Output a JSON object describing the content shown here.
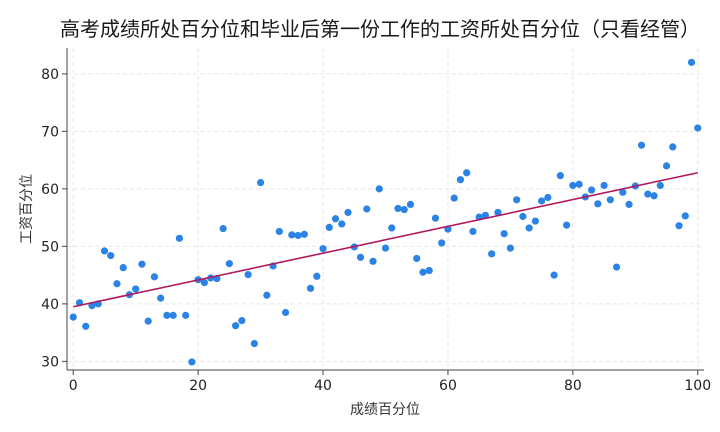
{
  "chart_data": {
    "type": "scatter",
    "title": "高考成绩所处百分位和毕业后第一份工作的工资所处百分位（只看经管）",
    "xlabel": "成绩百分位",
    "ylabel": "工资百分位",
    "xlim": [
      -1,
      101
    ],
    "ylim": [
      28.5,
      84.5
    ],
    "xticks": [
      0,
      20,
      40,
      60,
      80,
      100
    ],
    "yticks": [
      30,
      40,
      50,
      60,
      70,
      80
    ],
    "grid": true,
    "legend": "none",
    "colors": {
      "points": "#2b83e6",
      "fit_line": "#b0195e"
    },
    "fit_line": {
      "x": [
        0,
        100
      ],
      "y": [
        39.5,
        62.8
      ]
    },
    "series": [
      {
        "x": [
          0,
          1,
          2,
          3,
          4,
          5,
          6,
          7,
          8,
          9,
          10,
          11,
          12,
          13,
          14,
          15,
          16,
          17,
          18,
          19,
          20,
          21,
          22,
          23,
          24,
          25,
          26,
          27,
          28,
          29,
          30,
          31,
          32,
          33,
          34,
          35,
          36,
          37,
          38,
          39,
          40,
          41,
          42,
          43,
          44,
          45,
          46,
          47,
          48,
          49,
          50,
          51,
          52,
          53,
          54,
          55,
          56,
          57,
          58,
          59,
          60,
          61,
          62,
          63,
          64,
          65,
          66,
          67,
          68,
          69,
          70,
          71,
          72,
          73,
          74,
          75,
          76,
          77,
          78,
          79,
          80,
          81,
          82,
          83,
          84,
          85,
          86,
          87,
          88,
          89,
          90,
          91,
          92,
          93,
          94,
          95,
          96,
          97,
          98,
          99,
          100
        ],
        "y": [
          37.7,
          40.2,
          36.1,
          39.7,
          40.0,
          49.2,
          48.4,
          43.5,
          46.3,
          41.6,
          42.6,
          46.9,
          37.0,
          44.7,
          41.0,
          38.0,
          38.0,
          51.4,
          38.0,
          29.9,
          44.2,
          43.7,
          44.5,
          44.4,
          53.1,
          47.0,
          36.2,
          37.1,
          45.1,
          33.1,
          61.1,
          41.5,
          46.6,
          52.6,
          38.5,
          52.0,
          51.9,
          52.1,
          42.7,
          44.8,
          49.6,
          53.3,
          54.8,
          53.9,
          55.9,
          49.9,
          48.1,
          56.5,
          47.4,
          60.0,
          49.7,
          53.2,
          56.6,
          56.4,
          57.3,
          47.9,
          45.5,
          45.8,
          54.9,
          50.6,
          53.0,
          58.4,
          61.6,
          62.8,
          52.6,
          55.1,
          55.4,
          48.7,
          55.9,
          52.2,
          49.7,
          58.1,
          55.2,
          53.2,
          54.4,
          57.9,
          58.5,
          45.0,
          62.3,
          53.7,
          60.6,
          60.8,
          58.6,
          59.8,
          57.4,
          60.6,
          58.1,
          46.4,
          59.4,
          57.3,
          60.5,
          67.6,
          59.1,
          58.8,
          60.6,
          64.0,
          67.3,
          53.6,
          55.3,
          82.0,
          70.6
        ]
      }
    ]
  }
}
